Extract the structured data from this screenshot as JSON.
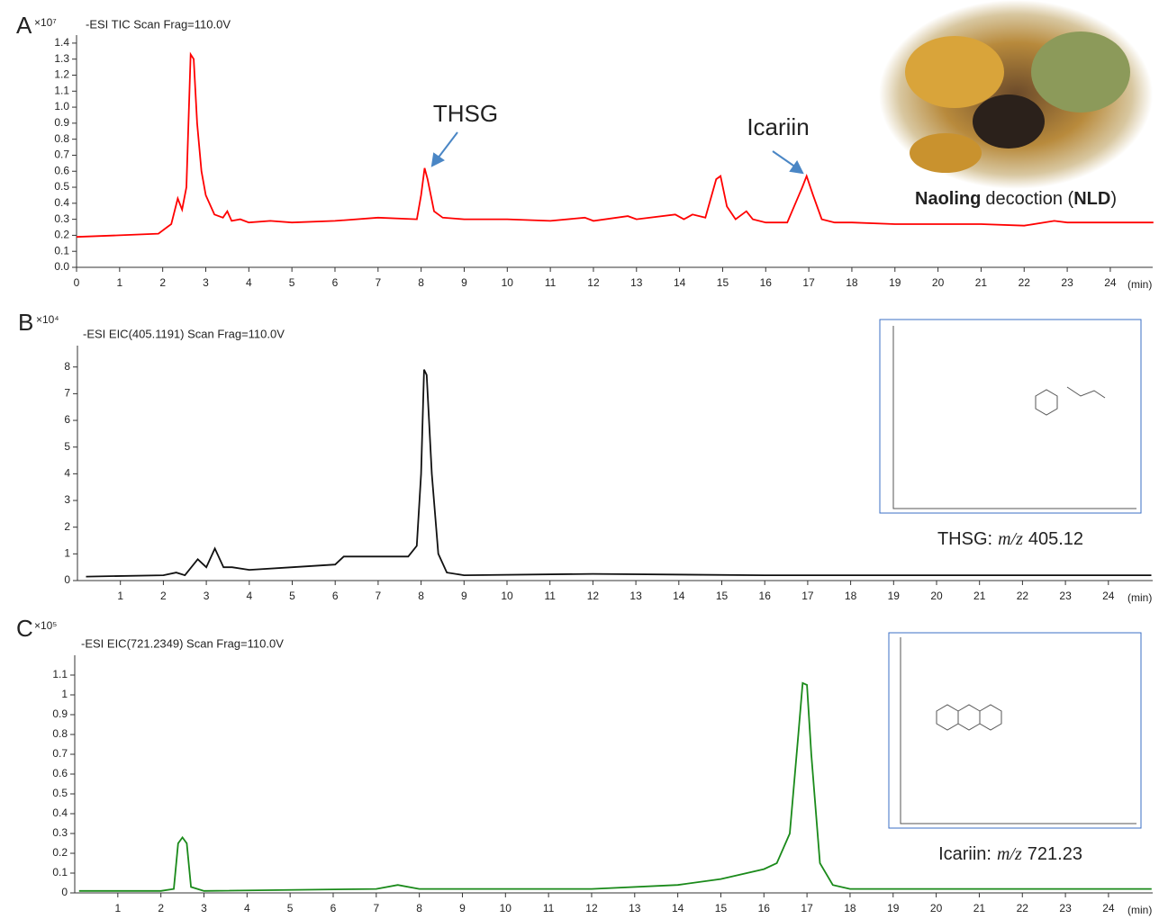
{
  "chart_data": [
    {
      "type": "line",
      "panel": "A",
      "title": "-ESI TIC Scan Frag=110.0V",
      "y_multiplier": "×10⁷",
      "x_unit": "(min)",
      "xlim": [
        0,
        25
      ],
      "xticks": [
        0,
        1,
        2,
        3,
        4,
        5,
        6,
        7,
        8,
        9,
        10,
        11,
        12,
        13,
        14,
        15,
        16,
        17,
        18,
        19,
        20,
        21,
        22,
        23,
        24
      ],
      "ylim": [
        0,
        1.45
      ],
      "yticks": [
        {
          "value": 0,
          "label": "0.0"
        },
        0.1,
        0.2,
        0.3,
        0.4,
        0.5,
        0.6,
        0.7,
        0.8,
        0.9,
        {
          "value": 1,
          "label": "1.0"
        },
        1.1,
        1.2,
        1.3,
        1.4
      ],
      "x": [
        0,
        1,
        1.9,
        2.1,
        2.2,
        2.35,
        2.45,
        2.55,
        2.65,
        2.72,
        2.8,
        2.9,
        3.0,
        3.2,
        3.4,
        3.5,
        3.6,
        3.8,
        4.0,
        4.5,
        5.0,
        6,
        7,
        7.9,
        8.0,
        8.08,
        8.15,
        8.3,
        8.5,
        9,
        10,
        11,
        11.8,
        12,
        12.8,
        13,
        13.9,
        14.1,
        14.3,
        14.6,
        14.85,
        14.95,
        15.1,
        15.3,
        15.55,
        15.7,
        16,
        16.5,
        16.85,
        16.95,
        17.1,
        17.3,
        17.6,
        18,
        19,
        20,
        21,
        22,
        22.7,
        23,
        24,
        25
      ],
      "series": [
        {
          "color": "#ff0000",
          "values": [
            0.19,
            0.2,
            0.21,
            0.25,
            0.27,
            0.43,
            0.36,
            0.5,
            1.33,
            1.3,
            0.9,
            0.6,
            0.45,
            0.33,
            0.31,
            0.35,
            0.29,
            0.3,
            0.28,
            0.29,
            0.28,
            0.29,
            0.31,
            0.3,
            0.45,
            0.62,
            0.55,
            0.35,
            0.31,
            0.3,
            0.3,
            0.29,
            0.31,
            0.29,
            0.32,
            0.3,
            0.33,
            0.3,
            0.33,
            0.31,
            0.55,
            0.57,
            0.38,
            0.3,
            0.35,
            0.3,
            0.28,
            0.28,
            0.5,
            0.57,
            0.45,
            0.3,
            0.28,
            0.28,
            0.27,
            0.27,
            0.27,
            0.26,
            0.29,
            0.28,
            0.28,
            0.28
          ]
        }
      ],
      "annotations": [
        "THSG",
        "Icariin"
      ],
      "image_caption": {
        "bold1": "Naoling",
        "middle": "decoction (",
        "bold2": "NLD",
        "end": ")"
      }
    },
    {
      "type": "line",
      "panel": "B",
      "title": "-ESI EIC(405.1191) Scan Frag=110.0V",
      "y_multiplier": "×10⁴",
      "x_unit": "(min)",
      "xlim": [
        0,
        25
      ],
      "xticks": [
        1,
        2,
        3,
        4,
        5,
        6,
        7,
        8,
        9,
        10,
        11,
        12,
        13,
        14,
        15,
        16,
        17,
        18,
        19,
        20,
        21,
        22,
        23,
        24
      ],
      "ylim": [
        0,
        8.8
      ],
      "yticks": [
        0,
        1,
        2,
        3,
        4,
        5,
        6,
        7,
        8
      ],
      "x": [
        0.2,
        2,
        2.3,
        2.5,
        2.8,
        3.0,
        3.2,
        3.4,
        3.6,
        4,
        5,
        6,
        6.2,
        7,
        7.7,
        7.9,
        8.0,
        8.07,
        8.13,
        8.25,
        8.4,
        8.6,
        9,
        12,
        16,
        20,
        24,
        25
      ],
      "series": [
        {
          "color": "#111111",
          "values": [
            0.15,
            0.2,
            0.3,
            0.2,
            0.8,
            0.5,
            1.2,
            0.5,
            0.5,
            0.4,
            0.5,
            0.6,
            0.9,
            0.9,
            0.9,
            1.3,
            4,
            7.9,
            7.7,
            4,
            1,
            0.3,
            0.2,
            0.25,
            0.2,
            0.2,
            0.2,
            0.2
          ]
        }
      ],
      "inset_caption": {
        "compound": "THSG:",
        "mz_label": "m/z",
        "mz": "405.12"
      }
    },
    {
      "type": "line",
      "panel": "C",
      "title": "-ESI EIC(721.2349) Scan Frag=110.0V",
      "y_multiplier": "×10⁵",
      "x_unit": "(min)",
      "xlim": [
        0,
        25
      ],
      "xticks": [
        1,
        2,
        3,
        4,
        5,
        6,
        7,
        8,
        9,
        10,
        11,
        12,
        13,
        14,
        15,
        16,
        17,
        18,
        19,
        20,
        21,
        22,
        23,
        24
      ],
      "ylim": [
        0,
        1.2
      ],
      "yticks": [
        0,
        0.1,
        0.2,
        0.3,
        0.4,
        0.5,
        0.6,
        0.7,
        0.8,
        0.9,
        1,
        1.1
      ],
      "x": [
        0.1,
        2,
        2.3,
        2.4,
        2.5,
        2.6,
        2.7,
        3,
        7,
        7.5,
        8,
        12,
        14,
        15,
        16,
        16.3,
        16.6,
        16.8,
        16.9,
        17.0,
        17.1,
        17.3,
        17.6,
        18,
        22,
        25
      ],
      "series": [
        {
          "color": "#1a8a1a",
          "values": [
            0.01,
            0.01,
            0.02,
            0.25,
            0.28,
            0.25,
            0.03,
            0.01,
            0.02,
            0.04,
            0.02,
            0.02,
            0.04,
            0.07,
            0.12,
            0.15,
            0.3,
            0.8,
            1.06,
            1.05,
            0.7,
            0.15,
            0.04,
            0.02,
            0.02,
            0.02
          ]
        }
      ],
      "inset_caption": {
        "compound": "Icariin:",
        "mz_label": "m/z",
        "mz": "721.23"
      }
    }
  ]
}
